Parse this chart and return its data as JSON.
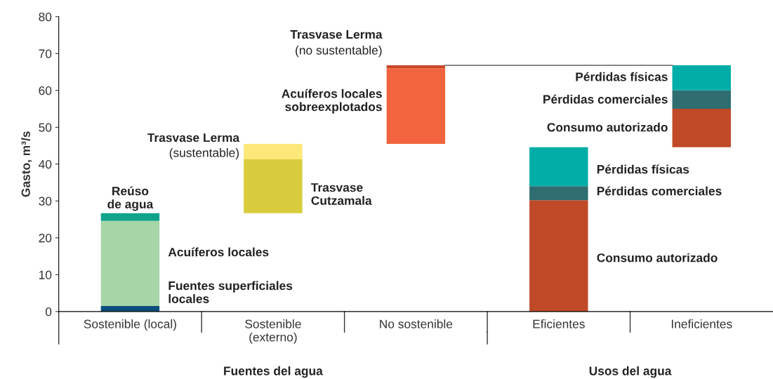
{
  "chart_data": {
    "type": "bar",
    "ylabel": "Gasto, m³/s",
    "categories": [
      "Sostenible (local)",
      "Sostenible\n(externo)",
      "No sostenible",
      "Eficientes",
      "Ineficientes"
    ],
    "series": [
      {
        "colors": [
          "#0b4f7c",
          "#d8cc3c",
          "#f2643e",
          "#c04a28",
          "#c04a28"
        ],
        "base": [
          0,
          26.7,
          45.5,
          0,
          44.6
        ],
        "values": [
          1.5,
          14.6,
          20.5,
          30.2,
          10.4
        ]
      },
      {
        "colors": [
          "#a6d5a7",
          "#fde97a",
          "#c8472b",
          "#2f6d70",
          "#2f6d70"
        ],
        "base": [
          1.5,
          41.3,
          66.0,
          30.2,
          55.0
        ],
        "values": [
          23.1,
          4.2,
          0.8,
          3.8,
          5.0
        ]
      },
      {
        "colors": [
          "#10a38a",
          null,
          null,
          "#00ada7",
          "#00ada7"
        ],
        "base": [
          24.6,
          null,
          null,
          34.0,
          60.0
        ],
        "values": [
          2.1,
          null,
          null,
          10.6,
          6.8
        ]
      }
    ],
    "ylim": [
      0,
      80
    ],
    "yticks": [
      0,
      10,
      20,
      30,
      40,
      50,
      60,
      70,
      80
    ],
    "grid": false,
    "ref_lines": [
      {
        "axis": "y",
        "value": 66.8,
        "color": "#777777"
      }
    ],
    "annotations": [
      "Reúso\nde agua",
      "Acuíferos locales",
      "Fuentes superficiales\nlocales",
      "Trasvase Lerma",
      "(sustentable)",
      "Trasvase\nCutzamala",
      "Trasvase Lerma",
      "(no sustentable)",
      "Acuíferos locales\nsobreexplotados",
      "Pérdidas físicas",
      "Pérdidas comerciales",
      "Consumo autorizado",
      "Pérdidas físicas",
      "Pérdidas comerciales",
      "Consumo autorizado",
      "Fuentes del agua",
      "Usos del agua"
    ]
  }
}
